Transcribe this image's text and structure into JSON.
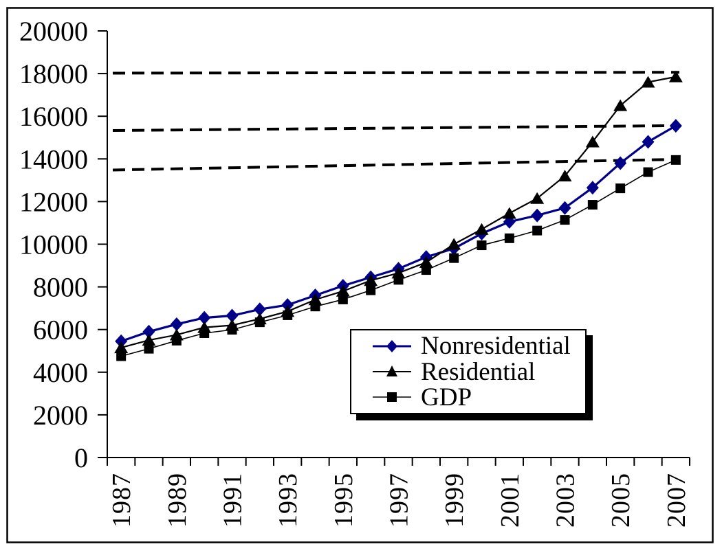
{
  "chart_data": {
    "type": "line",
    "title": "",
    "xlabel": "",
    "ylabel": "",
    "ylim": [
      0,
      20000
    ],
    "ytick_step": 2000,
    "y_tick_labels": [
      "0",
      "2000",
      "4000",
      "6000",
      "8000",
      "10000",
      "12000",
      "14000",
      "16000",
      "18000",
      "20000"
    ],
    "years": [
      1987,
      1988,
      1989,
      1990,
      1991,
      1992,
      1993,
      1994,
      1995,
      1996,
      1997,
      1998,
      1999,
      2000,
      2001,
      2002,
      2003,
      2004,
      2005,
      2006,
      2007
    ],
    "x_tick_labels": [
      "1987",
      "1989",
      "1991",
      "1993",
      "1995",
      "1997",
      "1999",
      "2001",
      "2003",
      "2005",
      "2007"
    ],
    "grid": false,
    "legend_position": "inside lower-center, white box with black border and drop shadow",
    "series": [
      {
        "name": "Nonresidential",
        "marker": "diamond",
        "color": "#000088",
        "values": [
          5450,
          5900,
          6250,
          6550,
          6650,
          6950,
          7150,
          7600,
          8050,
          8450,
          8850,
          9400,
          9800,
          10500,
          11050,
          11350,
          11700,
          12650,
          13800,
          14800,
          15550
        ]
      },
      {
        "name": "Residential",
        "marker": "triangle",
        "color": "#000000",
        "values": [
          5150,
          5500,
          5750,
          6100,
          6200,
          6500,
          6850,
          7400,
          7800,
          8300,
          8650,
          9150,
          10000,
          10700,
          11450,
          12150,
          13200,
          14800,
          16500,
          17600,
          17850
        ]
      },
      {
        "name": "GDP",
        "marker": "square",
        "color": "#000000",
        "values": [
          4750,
          5100,
          5480,
          5830,
          5990,
          6340,
          6670,
          7080,
          7410,
          7840,
          8330,
          8790,
          9350,
          9950,
          10280,
          10640,
          11140,
          11850,
          12620,
          13380,
          13950
        ]
      }
    ],
    "reference_lines": [
      {
        "style": "dashed",
        "color": "#000000",
        "start_value": 18020,
        "end_value": 18060
      },
      {
        "style": "dashed",
        "color": "#000000",
        "start_value": 15330,
        "end_value": 15560
      },
      {
        "style": "dashed",
        "color": "#000000",
        "start_value": 13480,
        "end_value": 13980
      }
    ]
  }
}
